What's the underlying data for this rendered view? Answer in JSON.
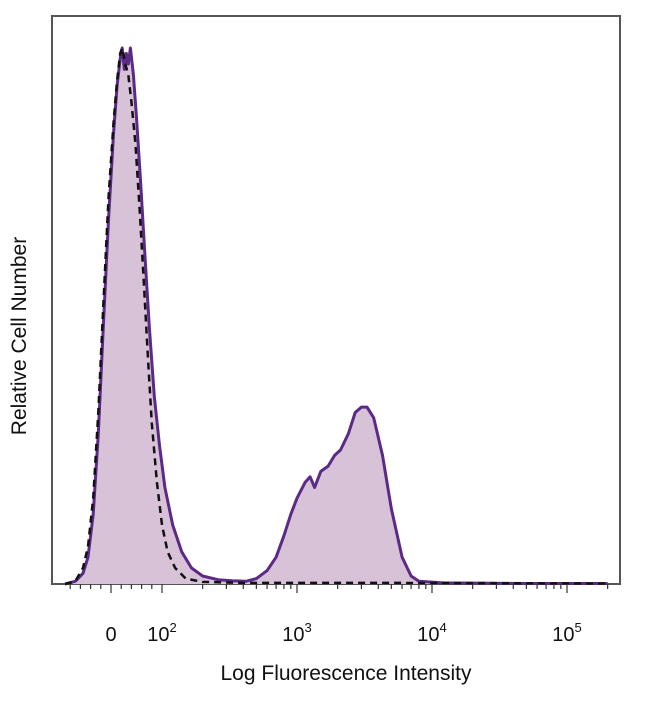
{
  "chart_data": {
    "type": "area",
    "title": "",
    "xlabel": "Log Fluorescence Intensity",
    "ylabel": "Relative Cell Number",
    "xscale": "biexponential (log, with linear region around 0)",
    "x_tick_labels": [
      {
        "value": 0,
        "base": "0",
        "exp": ""
      },
      {
        "value": 100,
        "base": "10",
        "exp": "2"
      },
      {
        "value": 1000,
        "base": "10",
        "exp": "3"
      },
      {
        "value": 10000,
        "base": "10",
        "exp": "4"
      },
      {
        "value": 100000,
        "base": "10",
        "exp": "5"
      }
    ],
    "ylim": [
      0,
      100
    ],
    "grid": false,
    "legend": "none",
    "series": [
      {
        "style": "filled",
        "color": "#5b2a86",
        "fill": "#d8c2d8",
        "points": [
          [
            -90,
            0
          ],
          [
            -70,
            0.5
          ],
          [
            -55,
            2
          ],
          [
            -45,
            5
          ],
          [
            -35,
            13
          ],
          [
            -25,
            28
          ],
          [
            -15,
            48
          ],
          [
            -5,
            68
          ],
          [
            5,
            84
          ],
          [
            12,
            93
          ],
          [
            18,
            98
          ],
          [
            22,
            100
          ],
          [
            26,
            96
          ],
          [
            30,
            99
          ],
          [
            34,
            97
          ],
          [
            38,
            100
          ],
          [
            44,
            95
          ],
          [
            50,
            87
          ],
          [
            58,
            75
          ],
          [
            66,
            62
          ],
          [
            75,
            48
          ],
          [
            85,
            35
          ],
          [
            95,
            26
          ],
          [
            105,
            18
          ],
          [
            120,
            11
          ],
          [
            140,
            6
          ],
          [
            165,
            3
          ],
          [
            200,
            1.5
          ],
          [
            260,
            0.8
          ],
          [
            330,
            0.6
          ],
          [
            420,
            0.5
          ],
          [
            500,
            1
          ],
          [
            600,
            2.5
          ],
          [
            700,
            5
          ],
          [
            800,
            9
          ],
          [
            900,
            13
          ],
          [
            1000,
            16
          ],
          [
            1150,
            19
          ],
          [
            1250,
            20
          ],
          [
            1350,
            18
          ],
          [
            1500,
            21
          ],
          [
            1700,
            22
          ],
          [
            1900,
            24
          ],
          [
            2100,
            25
          ],
          [
            2400,
            28
          ],
          [
            2700,
            32
          ],
          [
            3000,
            33
          ],
          [
            3300,
            33
          ],
          [
            3700,
            31
          ],
          [
            4300,
            24
          ],
          [
            5000,
            14
          ],
          [
            6000,
            5
          ],
          [
            7000,
            1.5
          ],
          [
            8000,
            0.5
          ],
          [
            12000,
            0.2
          ],
          [
            50000,
            0.1
          ],
          [
            200000,
            0.1
          ]
        ]
      },
      {
        "style": "dashed",
        "color": "#111111",
        "points": [
          [
            -90,
            0
          ],
          [
            -70,
            0.5
          ],
          [
            -55,
            3
          ],
          [
            -45,
            7
          ],
          [
            -35,
            16
          ],
          [
            -25,
            32
          ],
          [
            -15,
            52
          ],
          [
            -5,
            72
          ],
          [
            5,
            86
          ],
          [
            12,
            94
          ],
          [
            18,
            99
          ],
          [
            22,
            100
          ],
          [
            28,
            97
          ],
          [
            34,
            95
          ],
          [
            40,
            90
          ],
          [
            48,
            82
          ],
          [
            56,
            70
          ],
          [
            64,
            57
          ],
          [
            72,
            43
          ],
          [
            80,
            30
          ],
          [
            90,
            19
          ],
          [
            100,
            11
          ],
          [
            110,
            6
          ],
          [
            125,
            3
          ],
          [
            150,
            1
          ],
          [
            200,
            0.4
          ],
          [
            400,
            0.2
          ],
          [
            1000,
            0.2
          ],
          [
            5000,
            0.2
          ],
          [
            200000,
            0.1
          ]
        ]
      }
    ]
  }
}
